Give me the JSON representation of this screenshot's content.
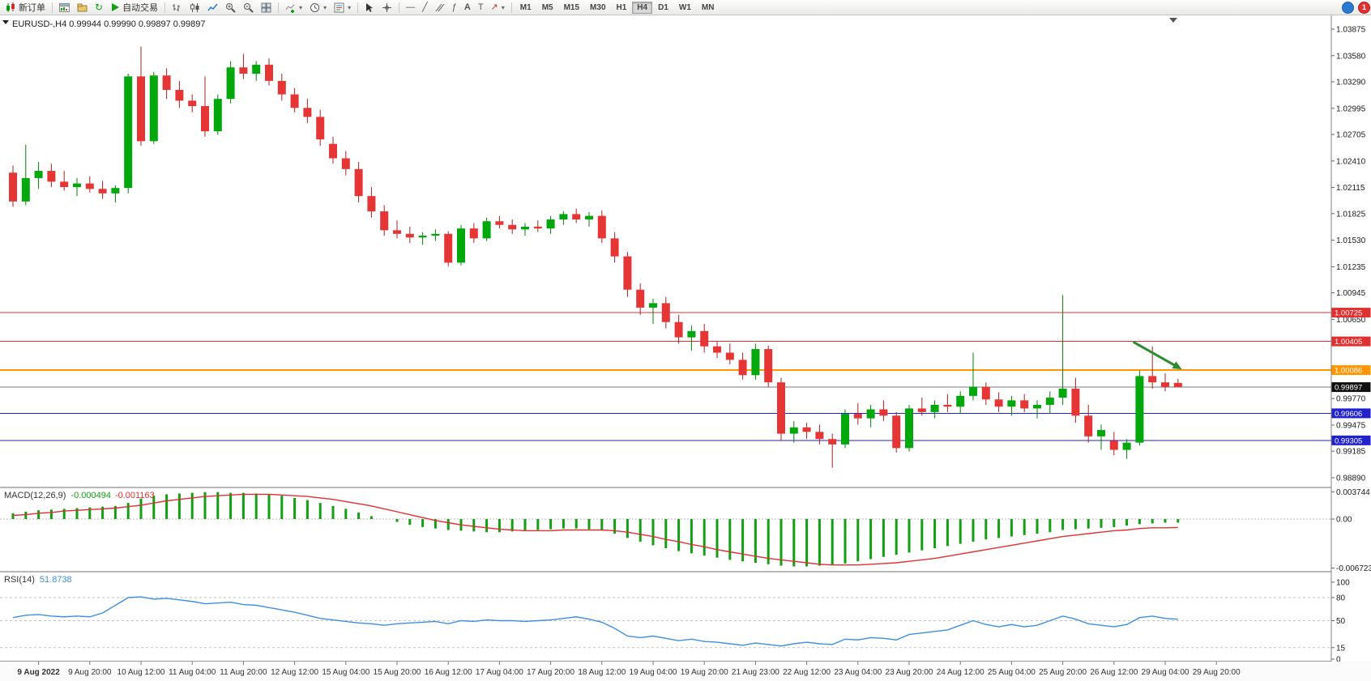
{
  "toolbar": {
    "new_order_label": "新订单",
    "autotrading_label": "自动交易",
    "timeframes": [
      "M1",
      "M5",
      "M15",
      "M30",
      "H1",
      "H4",
      "D1",
      "W1",
      "MN"
    ],
    "active_timeframe": "H4",
    "notification_count": "1"
  },
  "chart_header": {
    "symbol_period": "EURUSD-,H4",
    "open": "0.99944",
    "high": "0.99990",
    "low": "0.99897",
    "close": "0.99897"
  },
  "price_axis": {
    "labels": [
      "1.03875",
      "1.03580",
      "1.03290",
      "1.02995",
      "1.02705",
      "1.02410",
      "1.02115",
      "1.01825",
      "1.01530",
      "1.01235",
      "1.00945",
      "1.00650",
      "0.99770",
      "0.99475",
      "0.99185",
      "0.98890"
    ]
  },
  "hlines": [
    {
      "price": 1.00725,
      "label": "1.00725",
      "color": "#e03030",
      "width": 1
    },
    {
      "price": 1.00405,
      "label": "1.00405",
      "color": "#e03030",
      "width": 1
    },
    {
      "price": 1.00086,
      "label": "1.00086",
      "color": "#ff9500",
      "width": 2
    },
    {
      "price": 0.99606,
      "label": "0.99606",
      "color": "#2222cc",
      "width": 1
    },
    {
      "price": 0.99305,
      "label": "0.99305",
      "color": "#2222cc",
      "width": 1
    }
  ],
  "bid": {
    "price": 0.99897,
    "label": "0.99897",
    "line_color": "#787878",
    "tag_bg": "#111111"
  },
  "indicators": {
    "macd": {
      "label": "MACD(12,26,9)",
      "value_main": "-0.000494",
      "value_signal": "-0.001163",
      "axis_labels": [
        {
          "v": 0.003744,
          "t": "0.003744"
        },
        {
          "v": 0,
          "t": "0.00"
        },
        {
          "v": -0.006723,
          "t": "-0.006723"
        }
      ]
    },
    "rsi": {
      "label": "RSI(14)",
      "value": "51.8738",
      "axis_labels": [
        {
          "v": 100,
          "t": "100"
        },
        {
          "v": 80,
          "t": "80"
        },
        {
          "v": 50,
          "t": "50"
        },
        {
          "v": 15,
          "t": "15"
        },
        {
          "v": 0,
          "t": "0"
        }
      ],
      "levels": [
        80,
        50,
        15
      ]
    }
  },
  "time_axis": [
    [
      2,
      "9 Aug 2022"
    ],
    [
      6,
      "9 Aug 20:00"
    ],
    [
      10,
      "10 Aug 12:00"
    ],
    [
      14,
      "11 Aug 04:00"
    ],
    [
      18,
      "11 Aug 20:00"
    ],
    [
      22,
      "12 Aug 12:00"
    ],
    [
      26,
      "15 Aug 04:00"
    ],
    [
      30,
      "15 Aug 20:00"
    ],
    [
      34,
      "16 Aug 12:00"
    ],
    [
      38,
      "17 Aug 04:00"
    ],
    [
      42,
      "17 Aug 20:00"
    ],
    [
      46,
      "18 Aug 12:00"
    ],
    [
      50,
      "19 Aug 04:00"
    ],
    [
      54,
      "19 Aug 20:00"
    ],
    [
      58,
      "21 Aug 23:00"
    ],
    [
      62,
      "22 Aug 12:00"
    ],
    [
      66,
      "23 Aug 04:00"
    ],
    [
      70,
      "23 Aug 20:00"
    ],
    [
      74,
      "24 Aug 12:00"
    ],
    [
      78,
      "25 Aug 04:00"
    ],
    [
      82,
      "25 Aug 20:00"
    ],
    [
      86,
      "26 Aug 12:00"
    ],
    [
      90,
      "29 Aug 04:00"
    ],
    [
      94,
      "29 Aug 20:00"
    ]
  ],
  "colors": {
    "bull": "#00a80b",
    "bear": "#e53535",
    "bull_wick": "#077d07",
    "bear_wick": "#a62121",
    "macd_hist": "#12a012",
    "macd_signal": "#e03030",
    "rsi_line": "#3f8fde",
    "level_dash": "#c0c0c0",
    "axis_text": "#1a1a1a",
    "arrow": "#2e8b2e"
  },
  "chart_data": {
    "type": "candlestick",
    "symbol": "EURUSD-",
    "period": "H4",
    "candles": [
      [
        1.0228,
        1.0236,
        1.019,
        1.0196
      ],
      [
        1.0196,
        1.0259,
        1.0192,
        1.0222
      ],
      [
        1.0222,
        1.024,
        1.021,
        1.023
      ],
      [
        1.023,
        1.0238,
        1.0212,
        1.0218
      ],
      [
        1.0218,
        1.023,
        1.0208,
        1.0212
      ],
      [
        1.0212,
        1.0222,
        1.0202,
        1.0216
      ],
      [
        1.0216,
        1.0224,
        1.0206,
        1.021
      ],
      [
        1.021,
        1.0219,
        1.0199,
        1.0205
      ],
      [
        1.0205,
        1.0214,
        1.0195,
        1.0211
      ],
      [
        1.0211,
        1.0338,
        1.0205,
        1.0335
      ],
      [
        1.0335,
        1.0368,
        1.0258,
        1.0263
      ],
      [
        1.0263,
        1.034,
        1.026,
        1.0336
      ],
      [
        1.0336,
        1.0344,
        1.031,
        1.032
      ],
      [
        1.032,
        1.033,
        1.03,
        1.0308
      ],
      [
        1.0308,
        1.0315,
        1.0295,
        1.0302
      ],
      [
        1.0302,
        1.0335,
        1.0268,
        1.0274
      ],
      [
        1.0274,
        1.0315,
        1.027,
        1.031
      ],
      [
        1.031,
        1.0352,
        1.0305,
        1.0345
      ],
      [
        1.0345,
        1.036,
        1.0332,
        1.0338
      ],
      [
        1.0338,
        1.0352,
        1.033,
        1.0348
      ],
      [
        1.0348,
        1.0355,
        1.0325,
        1.033
      ],
      [
        1.033,
        1.0338,
        1.0308,
        1.0315
      ],
      [
        1.0315,
        1.0322,
        1.0295,
        1.03
      ],
      [
        1.03,
        1.031,
        1.0283,
        1.029
      ],
      [
        1.029,
        1.0298,
        1.0258,
        1.0265
      ],
      [
        1.026,
        1.0268,
        1.0238,
        1.0244
      ],
      [
        1.0244,
        1.0252,
        1.0225,
        1.0232
      ],
      [
        1.0232,
        1.024,
        1.0195,
        1.0202
      ],
      [
        1.0202,
        1.0212,
        1.0178,
        1.0185
      ],
      [
        1.0185,
        1.0192,
        1.0158,
        1.0164
      ],
      [
        1.0164,
        1.0175,
        1.0155,
        1.016
      ],
      [
        1.016,
        1.0168,
        1.015,
        1.0156
      ],
      [
        1.0156,
        1.0162,
        1.0148,
        1.0158
      ],
      [
        1.0158,
        1.0165,
        1.0152,
        1.016
      ],
      [
        1.016,
        1.0163,
        1.0124,
        1.0128
      ],
      [
        1.0128,
        1.017,
        1.0125,
        1.0166
      ],
      [
        1.0166,
        1.0172,
        1.015,
        1.0155
      ],
      [
        1.0155,
        1.0178,
        1.0152,
        1.0174
      ],
      [
        1.0174,
        1.018,
        1.0166,
        1.017
      ],
      [
        1.017,
        1.0176,
        1.016,
        1.0165
      ],
      [
        1.0165,
        1.0172,
        1.0158,
        1.0168
      ],
      [
        1.0168,
        1.0175,
        1.0162,
        1.0166
      ],
      [
        1.0166,
        1.018,
        1.016,
        1.0176
      ],
      [
        1.0176,
        1.0185,
        1.017,
        1.0182
      ],
      [
        1.0182,
        1.0188,
        1.0172,
        1.0176
      ],
      [
        1.0176,
        1.0184,
        1.0168,
        1.018
      ],
      [
        1.018,
        1.0186,
        1.015,
        1.0155
      ],
      [
        1.0155,
        1.0162,
        1.0128,
        1.0135
      ],
      [
        1.0135,
        1.014,
        1.009,
        1.0098
      ],
      [
        1.0098,
        1.0105,
        1.007,
        1.0078
      ],
      [
        1.0078,
        1.0088,
        1.006,
        1.0083
      ],
      [
        1.0083,
        1.009,
        1.0055,
        1.0062
      ],
      [
        1.0062,
        1.007,
        1.0038,
        1.0045
      ],
      [
        1.0045,
        1.0058,
        1.003,
        1.0052
      ],
      [
        1.0052,
        1.006,
        1.0028,
        1.0035
      ],
      [
        1.0035,
        1.004,
        1.0022,
        1.0028
      ],
      [
        1.0028,
        1.0038,
        1.0015,
        1.002
      ],
      [
        1.002,
        1.0028,
        0.9998,
        1.0003
      ],
      [
        1.0003,
        1.0038,
        0.9998,
        1.0032
      ],
      [
        1.0032,
        1.0036,
        0.999,
        0.9995
      ],
      [
        0.9995,
        1.0,
        0.993,
        0.9938
      ],
      [
        0.9938,
        0.9952,
        0.9928,
        0.9945
      ],
      [
        0.9945,
        0.995,
        0.9932,
        0.994
      ],
      [
        0.994,
        0.9948,
        0.9926,
        0.9932
      ],
      [
        0.9932,
        0.9938,
        0.99,
        0.9926
      ],
      [
        0.9926,
        0.9965,
        0.9922,
        0.996
      ],
      [
        0.996,
        0.9972,
        0.9948,
        0.9955
      ],
      [
        0.9955,
        0.997,
        0.9945,
        0.9965
      ],
      [
        0.9965,
        0.9975,
        0.9952,
        0.9958
      ],
      [
        0.9958,
        0.9962,
        0.9917,
        0.9922
      ],
      [
        0.9922,
        0.997,
        0.9918,
        0.9966
      ],
      [
        0.9966,
        0.9978,
        0.9958,
        0.9962
      ],
      [
        0.9962,
        0.9975,
        0.9955,
        0.997
      ],
      [
        0.997,
        0.9982,
        0.9962,
        0.9968
      ],
      [
        0.9968,
        0.9985,
        0.996,
        0.998
      ],
      [
        0.998,
        1.0028,
        0.9975,
        0.999
      ],
      [
        0.999,
        0.9995,
        0.997,
        0.9976
      ],
      [
        0.9976,
        0.9984,
        0.9962,
        0.9968
      ],
      [
        0.9968,
        0.998,
        0.9958,
        0.9975
      ],
      [
        0.9975,
        0.9982,
        0.9962,
        0.9966
      ],
      [
        0.9966,
        0.9975,
        0.9955,
        0.997
      ],
      [
        0.997,
        0.9985,
        0.996,
        0.9978
      ],
      [
        0.9978,
        1.0092,
        0.997,
        0.9988
      ],
      [
        0.9988,
        1.0,
        0.995,
        0.9958
      ],
      [
        0.9958,
        0.997,
        0.9928,
        0.9935
      ],
      [
        0.9935,
        0.9948,
        0.992,
        0.9942
      ],
      [
        0.993,
        0.994,
        0.9914,
        0.992
      ],
      [
        0.992,
        0.9932,
        0.991,
        0.9928
      ],
      [
        0.9928,
        1.0008,
        0.9925,
        1.0002
      ],
      [
        1.0002,
        1.0035,
        0.9988,
        0.9995
      ],
      [
        0.9995,
        1.0005,
        0.9985,
        0.999
      ],
      [
        0.99944,
        0.9999,
        0.99897,
        0.99897
      ]
    ],
    "macd_hist": [
      0.0008,
      0.001,
      0.0012,
      0.0013,
      0.0014,
      0.0015,
      0.0016,
      0.0017,
      0.0018,
      0.0022,
      0.0028,
      0.0032,
      0.0034,
      0.0035,
      0.0036,
      0.0037,
      0.0037,
      0.0036,
      0.0036,
      0.0035,
      0.0034,
      0.0032,
      0.0029,
      0.0026,
      0.0022,
      0.0018,
      0.0014,
      0.0009,
      0.0004,
      0.0,
      -0.0004,
      -0.0008,
      -0.0011,
      -0.0013,
      -0.0015,
      -0.0016,
      -0.0017,
      -0.0018,
      -0.0018,
      -0.0017,
      -0.0016,
      -0.0015,
      -0.0014,
      -0.0013,
      -0.0013,
      -0.0014,
      -0.0016,
      -0.002,
      -0.0026,
      -0.0031,
      -0.0036,
      -0.004,
      -0.0044,
      -0.0047,
      -0.005,
      -0.0053,
      -0.0056,
      -0.0058,
      -0.006,
      -0.0062,
      -0.0064,
      -0.0065,
      -0.0065,
      -0.0064,
      -0.0063,
      -0.0061,
      -0.0058,
      -0.0055,
      -0.0052,
      -0.0049,
      -0.0046,
      -0.0043,
      -0.004,
      -0.0037,
      -0.0034,
      -0.0031,
      -0.0028,
      -0.0026,
      -0.0024,
      -0.0022,
      -0.002,
      -0.0018,
      -0.0015,
      -0.0014,
      -0.0013,
      -0.0012,
      -0.0011,
      -0.0009,
      -0.0007,
      -0.0006,
      -0.0005,
      -0.000494
    ],
    "macd_signal": [
      0.0005,
      0.0006,
      0.0008,
      0.0009,
      0.0011,
      0.0012,
      0.0013,
      0.0014,
      0.0015,
      0.0017,
      0.0019,
      0.0022,
      0.0025,
      0.0027,
      0.0029,
      0.0031,
      0.0032,
      0.0033,
      0.0034,
      0.0034,
      0.0034,
      0.0033,
      0.0032,
      0.0031,
      0.0029,
      0.0027,
      0.0024,
      0.0021,
      0.0018,
      0.0014,
      0.001,
      0.0006,
      0.0002,
      -0.0002,
      -0.0005,
      -0.0008,
      -0.001,
      -0.0012,
      -0.0014,
      -0.0015,
      -0.0016,
      -0.0016,
      -0.0016,
      -0.0015,
      -0.0015,
      -0.0015,
      -0.0015,
      -0.0016,
      -0.0018,
      -0.0021,
      -0.0024,
      -0.0028,
      -0.0031,
      -0.0035,
      -0.0038,
      -0.0042,
      -0.0045,
      -0.0048,
      -0.0051,
      -0.0054,
      -0.0056,
      -0.0058,
      -0.006,
      -0.0062,
      -0.0063,
      -0.0063,
      -0.0063,
      -0.0062,
      -0.0061,
      -0.006,
      -0.0058,
      -0.0056,
      -0.0054,
      -0.0051,
      -0.0048,
      -0.0045,
      -0.0042,
      -0.0039,
      -0.0036,
      -0.0033,
      -0.003,
      -0.0027,
      -0.0024,
      -0.0022,
      -0.002,
      -0.0018,
      -0.0016,
      -0.0015,
      -0.0013,
      -0.0012,
      -0.0012,
      -0.001163
    ],
    "rsi": [
      54,
      57,
      58,
      56,
      55,
      56,
      55,
      60,
      70,
      80,
      81,
      78,
      79,
      77,
      75,
      72,
      73,
      74,
      71,
      70,
      67,
      64,
      61,
      57,
      53,
      51,
      49,
      47,
      46,
      44,
      46,
      47,
      48,
      49,
      46,
      50,
      49,
      51,
      50,
      50,
      49,
      50,
      51,
      53,
      55,
      52,
      48,
      40,
      30,
      28,
      30,
      27,
      24,
      26,
      23,
      22,
      20,
      18,
      21,
      19,
      17,
      20,
      22,
      20,
      19,
      26,
      25,
      28,
      27,
      25,
      32,
      34,
      36,
      38,
      44,
      50,
      45,
      42,
      45,
      42,
      44,
      50,
      56,
      52,
      46,
      44,
      42,
      45,
      54,
      56,
      53,
      51.87
    ],
    "arrow_annotation": {
      "from": {
        "index": 87.5,
        "price": 1.004
      },
      "to": {
        "index": 91.3,
        "price": 1.00095
      }
    }
  }
}
